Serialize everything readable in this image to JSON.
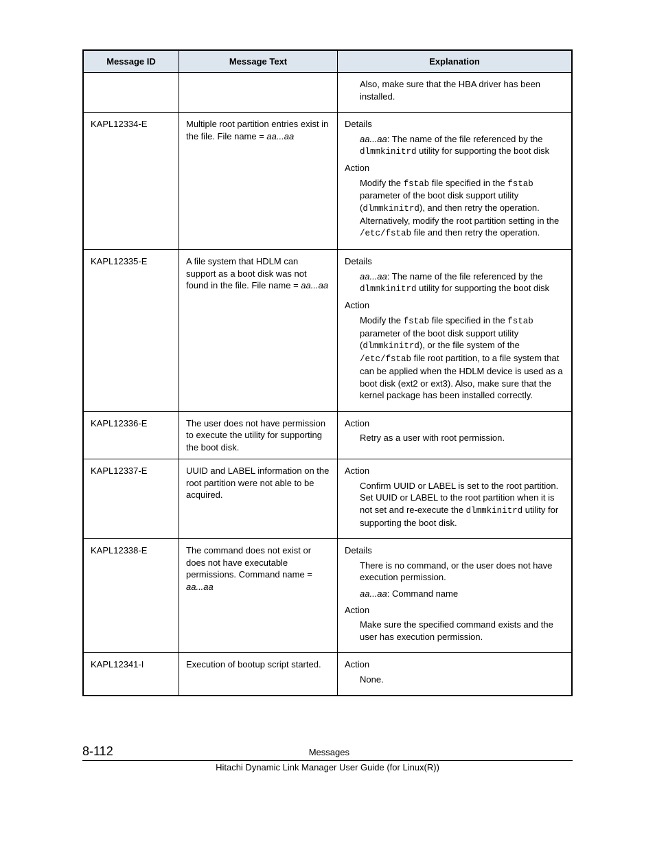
{
  "table": {
    "headers": {
      "id": "Message ID",
      "text": "Message Text",
      "exp": "Explanation"
    },
    "rows": [
      {
        "id": "",
        "text": "",
        "exp_parts": {
          "p1": "Also, make sure that the HBA driver has been installed."
        }
      },
      {
        "id": "KAPL12334-E",
        "text_parts": {
          "t1": "Multiple root partition entries exist in the file. File name = ",
          "t_var": "aa...aa"
        },
        "exp": {
          "details_label": "Details",
          "d_var": "aa...aa",
          "d_rest1": ": The name of the file referenced by the ",
          "d_code1": "dlmmkinitrd",
          "d_rest2": " utility for supporting the boot disk",
          "action_label": "Action",
          "a_1": "Modify the ",
          "a_code1": "fstab",
          "a_2": " file specified in the ",
          "a_code2": "fstab",
          "a_3": " parameter of the boot disk support utility (",
          "a_code3": "dlmmkinitrd",
          "a_4": "), and then retry the operation. Alternatively, modify the root partition setting in the ",
          "a_code4": "/etc/fstab",
          "a_5": " file and then retry the operation."
        }
      },
      {
        "id": "KAPL12335-E",
        "text_parts": {
          "t1": "A file system that HDLM can support as a boot disk was not found in the file. File name = ",
          "t_var": "aa...aa"
        },
        "exp": {
          "details_label": "Details",
          "d_var": "aa...aa",
          "d_rest1": ": The name of the file referenced by the ",
          "d_code1": "dlmmkinitrd",
          "d_rest2": " utility for supporting the boot disk",
          "action_label": "Action",
          "a_1": "Modify the ",
          "a_code1": "fstab",
          "a_2": " file specified in the ",
          "a_code2": "fstab",
          "a_3": " parameter of the boot disk support utility (",
          "a_code3": "dlmmkinitrd",
          "a_4": "), or the file system of the ",
          "a_code4": "/etc/fstab",
          "a_5": " file root partition, to a file system that can be applied when the HDLM device is used as a boot disk (ext2 or ext3). Also, make sure that the kernel package has been installed correctly."
        }
      },
      {
        "id": "KAPL12336-E",
        "text": "The user does not have permission to execute the utility for supporting the boot disk.",
        "exp": {
          "action_label": "Action",
          "a_1": "Retry as a user with root permission."
        }
      },
      {
        "id": "KAPL12337-E",
        "text": "UUID and LABEL information on the root partition were not able to be acquired.",
        "exp": {
          "action_label": "Action",
          "a_1": "Confirm UUID or LABEL is set to the root partition. Set UUID or LABEL to the root partition when it is not set and re-execute the ",
          "a_code1": "dlmmkinitrd",
          "a_2": " utility for supporting the boot disk."
        }
      },
      {
        "id": "KAPL12338-E",
        "text_parts": {
          "t1": "The command does not exist or does not have executable permissions. Command name = ",
          "t_var": "aa...aa"
        },
        "exp": {
          "details_label": "Details",
          "d_1": "There is no command, or the user does not have execution permission.",
          "d_var": "aa...aa",
          "d_2": ": Command name",
          "action_label": "Action",
          "a_1": "Make sure the specified command exists and the user has execution permission."
        }
      },
      {
        "id": "KAPL12341-I",
        "text": "Execution of bootup script started.",
        "exp": {
          "action_label": "Action",
          "a_1": "None."
        }
      }
    ]
  },
  "footer": {
    "page": "8-112",
    "title": "Messages",
    "guide": "Hitachi Dynamic Link Manager User Guide (for Linux(R))"
  }
}
